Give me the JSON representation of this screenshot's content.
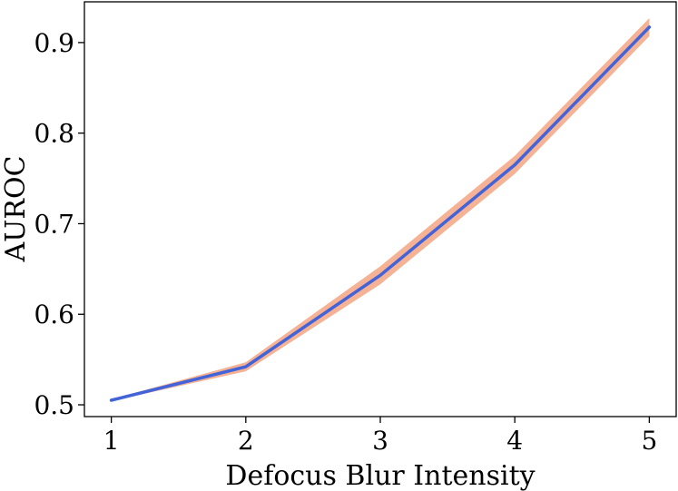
{
  "chart_data": {
    "type": "line",
    "title": "",
    "xlabel": "Defocus Blur Intensity",
    "ylabel": "AUROC",
    "x": [
      1,
      2,
      3,
      4,
      5
    ],
    "x_tick_labels": [
      "1",
      "2",
      "3",
      "4",
      "5"
    ],
    "y_ticks": [
      0.5,
      0.6,
      0.7,
      0.8,
      0.9
    ],
    "y_tick_labels": [
      "0.5",
      "0.6",
      "0.7",
      "0.8",
      "0.9"
    ],
    "xlim": [
      0.8,
      5.2
    ],
    "ylim": [
      0.487,
      0.945
    ],
    "grid": false,
    "legend": "none",
    "series": [
      {
        "values": [
          0.505,
          0.542,
          0.643,
          0.765,
          0.917
        ],
        "lower": [
          0.504,
          0.537,
          0.633,
          0.755,
          0.907
        ],
        "upper": [
          0.506,
          0.547,
          0.653,
          0.775,
          0.927
        ],
        "line_color": "#4363d8",
        "band_color": "#f4a582"
      }
    ]
  }
}
